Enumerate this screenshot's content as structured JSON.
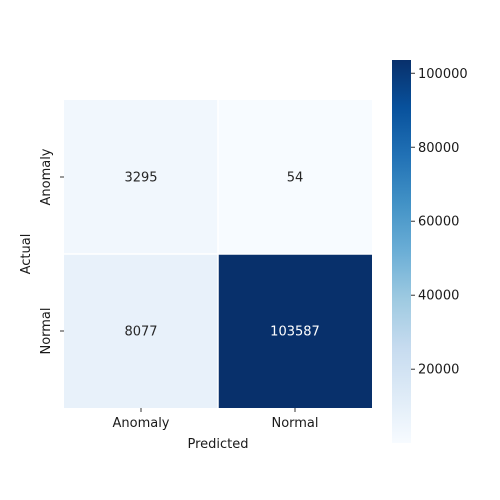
{
  "chart_data": {
    "type": "heatmap",
    "xlabel": "Predicted",
    "ylabel": "Actual",
    "x_categories": [
      "Anomaly",
      "Normal"
    ],
    "y_categories": [
      "Anomaly",
      "Normal"
    ],
    "values": [
      [
        3295,
        54
      ],
      [
        8077,
        103587
      ]
    ],
    "annotations": true,
    "colormap": "Blues",
    "colorbar": {
      "min": 54,
      "max": 103587,
      "ticks": [
        20000,
        40000,
        60000,
        80000,
        100000
      ],
      "tick_labels": [
        "20000",
        "40000",
        "60000",
        "80000",
        "100000"
      ]
    }
  }
}
